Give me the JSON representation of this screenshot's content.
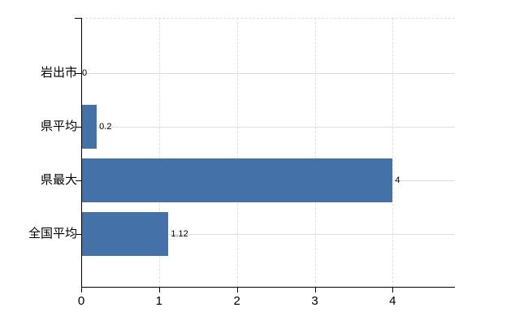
{
  "chart_data": {
    "type": "bar",
    "orientation": "horizontal",
    "title": "",
    "xlabel": "",
    "ylabel": "",
    "categories": [
      "岩出市",
      "県平均",
      "県最大",
      "全国平均"
    ],
    "values": [
      0,
      0.2,
      4,
      1.12
    ],
    "data_labels": [
      "0",
      "0.2",
      "4",
      "1.12"
    ],
    "x_ticks": [
      0,
      1,
      2,
      3,
      4
    ],
    "x_tick_labels": [
      "0",
      "1",
      "2",
      "3",
      "4"
    ],
    "xlim": [
      0,
      4.8
    ],
    "grid": true,
    "legend": false
  },
  "colors": {
    "background": "#ffffff",
    "bar": "#4472a8",
    "axis": "#000000",
    "h_gridline": "#d9e2d9",
    "v_gridline": "#e5dce3",
    "top_border": "#e0dbe0",
    "text": "#000000"
  }
}
